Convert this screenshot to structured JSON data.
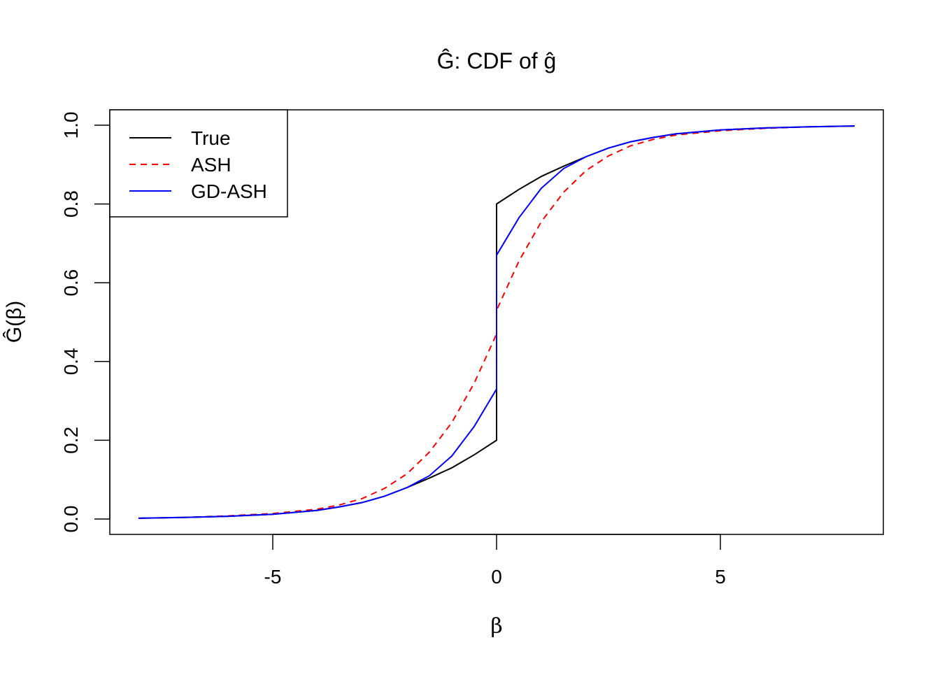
{
  "chart_data": {
    "type": "line",
    "title": "Ĝ: CDF of ĝ",
    "xlabel": "β",
    "ylabel": "Ĝ(β)",
    "xlim": [
      -8,
      8
    ],
    "ylim": [
      0,
      1
    ],
    "grid": false,
    "legend_position": "top-left",
    "x_ticks": [
      -5,
      0,
      5
    ],
    "x_tick_labels": [
      "-5",
      "0",
      "5"
    ],
    "y_ticks": [
      0,
      0.2,
      0.4,
      0.6,
      0.8,
      1.0
    ],
    "y_tick_labels": [
      "0.0",
      "0.2",
      "0.4",
      "0.6",
      "0.8",
      "1.0"
    ],
    "x": [
      -8,
      -7,
      -6,
      -5,
      -4,
      -3.5,
      -3,
      -2.5,
      -2,
      -1.5,
      -1,
      -0.5,
      0,
      0,
      0.5,
      1,
      1.5,
      2,
      2.5,
      3,
      3.5,
      4,
      5,
      6,
      7,
      8
    ],
    "series": [
      {
        "name": "True",
        "color": "#000000",
        "style": "solid",
        "values": [
          0.002,
          0.004,
          0.007,
          0.012,
          0.022,
          0.031,
          0.042,
          0.058,
          0.08,
          0.104,
          0.13,
          0.163,
          0.2,
          0.8,
          0.837,
          0.87,
          0.896,
          0.92,
          0.942,
          0.958,
          0.969,
          0.978,
          0.988,
          0.993,
          0.996,
          0.998
        ]
      },
      {
        "name": "ASH",
        "color": "#ff0000",
        "style": "dashed",
        "values": [
          0.002,
          0.004,
          0.008,
          0.014,
          0.025,
          0.036,
          0.052,
          0.078,
          0.115,
          0.17,
          0.245,
          0.345,
          0.47,
          0.53,
          0.655,
          0.755,
          0.83,
          0.885,
          0.922,
          0.948,
          0.964,
          0.975,
          0.986,
          0.992,
          0.996,
          0.998
        ]
      },
      {
        "name": "GD-ASH",
        "color": "#0000ff",
        "style": "solid",
        "values": [
          0.002,
          0.004,
          0.007,
          0.012,
          0.022,
          0.031,
          0.042,
          0.058,
          0.08,
          0.11,
          0.16,
          0.235,
          0.33,
          0.67,
          0.765,
          0.84,
          0.89,
          0.92,
          0.942,
          0.958,
          0.969,
          0.978,
          0.988,
          0.993,
          0.996,
          0.998
        ]
      }
    ]
  }
}
